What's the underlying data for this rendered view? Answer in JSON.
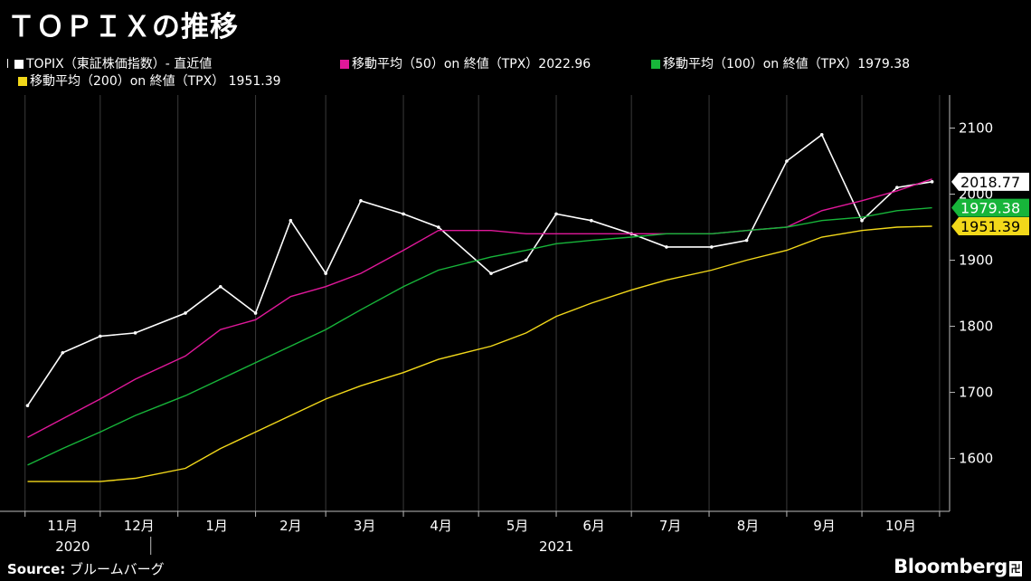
{
  "title": "ＴＯＰＩＸの推移",
  "legend": [
    {
      "label": "TOPIX（東証株価指数）- 直近値",
      "color": "#ffffff",
      "icon": "candlestick-icon"
    },
    {
      "label": "移動平均（50）on 終値（TPX）2022.96",
      "color": "#e0189a"
    },
    {
      "label": "移動平均（100）on 終値（TPX）1979.38",
      "color": "#17b53a"
    },
    {
      "label": "移動平均（200）on 終値（TPX） 1951.39",
      "color": "#f2d81a"
    }
  ],
  "source_label": "Source:",
  "source_text": "ブルームバーグ",
  "brand": "Bloomberg",
  "brand_mark": "卍",
  "chart_data": {
    "type": "line",
    "x_tick_labels": [
      "11月",
      "12月",
      "1月",
      "2月",
      "3月",
      "4月",
      "5月",
      "6月",
      "7月",
      "8月",
      "9月",
      "10月"
    ],
    "year_labels": [
      "2020",
      "2021"
    ],
    "y_ticks": [
      1600,
      1700,
      1800,
      1900,
      2000,
      2100
    ],
    "ylim": [
      1520,
      2150
    ],
    "x": [
      "2020-11-02",
      "2020-11-16",
      "2020-12-01",
      "2020-12-15",
      "2021-01-04",
      "2021-01-18",
      "2021-02-01",
      "2021-02-15",
      "2021-03-01",
      "2021-03-15",
      "2021-04-01",
      "2021-04-15",
      "2021-05-06",
      "2021-05-20",
      "2021-06-01",
      "2021-06-15",
      "2021-07-01",
      "2021-07-15",
      "2021-08-02",
      "2021-08-16",
      "2021-09-01",
      "2021-09-15",
      "2021-10-01",
      "2021-10-15",
      "2021-10-29"
    ],
    "series": [
      {
        "name": "TOPIX（東証株価指数）- 直近値",
        "color": "#ffffff",
        "values": [
          1680,
          1760,
          1785,
          1790,
          1820,
          1860,
          1820,
          1960,
          1880,
          1990,
          1970,
          1950,
          1880,
          1900,
          1970,
          1960,
          1940,
          1920,
          1920,
          1930,
          2050,
          2090,
          1960,
          2010,
          2018.77
        ]
      },
      {
        "name": "移動平均（50）on 終値（TPX）",
        "color": "#e0189a",
        "values": [
          1632,
          1660,
          1690,
          1720,
          1755,
          1795,
          1810,
          1845,
          1860,
          1880,
          1915,
          1945,
          1945,
          1940,
          1940,
          1940,
          1940,
          1940,
          1940,
          1945,
          1950,
          1975,
          1990,
          2005,
          2022.96
        ]
      },
      {
        "name": "移動平均（100）on 終値（TPX）",
        "color": "#17b53a",
        "values": [
          1590,
          1615,
          1640,
          1665,
          1695,
          1720,
          1745,
          1770,
          1795,
          1825,
          1860,
          1885,
          1905,
          1915,
          1925,
          1930,
          1935,
          1940,
          1940,
          1945,
          1950,
          1960,
          1965,
          1975,
          1979.38
        ]
      },
      {
        "name": "移動平均（200）on 終値（TPX）",
        "color": "#f2d81a",
        "values": [
          1565,
          1565,
          1565,
          1570,
          1585,
          1615,
          1640,
          1665,
          1690,
          1710,
          1730,
          1750,
          1770,
          1790,
          1815,
          1835,
          1855,
          1870,
          1885,
          1900,
          1915,
          1935,
          1945,
          1950,
          1951.39
        ]
      }
    ],
    "end_labels": [
      {
        "text": "2018.77",
        "value": 2018.77,
        "bg": "#ffffff",
        "fg": "#000000"
      },
      {
        "text": "1979.38",
        "value": 1979.38,
        "bg": "#17b53a",
        "fg": "#ffffff"
      },
      {
        "text": "1951.39",
        "value": 1951.39,
        "bg": "#f2d81a",
        "fg": "#000000"
      }
    ]
  }
}
